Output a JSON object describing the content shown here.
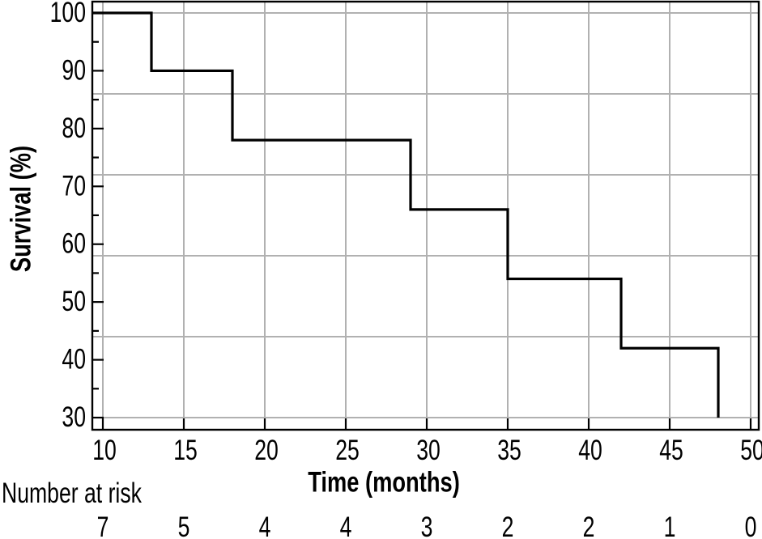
{
  "chart_data": {
    "type": "line",
    "subtype": "kaplan-meier-step-survival",
    "title": "",
    "xlabel": "Time (months)",
    "ylabel": "Survival (%)",
    "xlim": [
      10,
      50
    ],
    "ylim": [
      30,
      100
    ],
    "x_ticks": [
      10,
      15,
      20,
      25,
      30,
      35,
      40,
      45,
      50
    ],
    "y_ticks": [
      30,
      40,
      50,
      60,
      70,
      80,
      90,
      100
    ],
    "y_minor_ticks": [
      35,
      45,
      55,
      65,
      75,
      85,
      95
    ],
    "grid": {
      "shown": true,
      "vertical_at_months": [
        10,
        15,
        20,
        25,
        30,
        35,
        40,
        45,
        50
      ],
      "horizontal_at_percent": [
        100,
        86,
        72,
        58,
        44,
        30
      ],
      "color": "#b1b1b1"
    },
    "series": [
      {
        "name": "survival",
        "color": "#000000",
        "step_points": [
          [
            10,
            100
          ],
          [
            13,
            90
          ],
          [
            18,
            78
          ],
          [
            29,
            66
          ],
          [
            35,
            54
          ],
          [
            42,
            42
          ],
          [
            48,
            30
          ]
        ]
      }
    ],
    "legend_position": "none",
    "colors": {
      "curve": "#000000",
      "axis": "#000000",
      "grid": "#b1b1b1"
    }
  },
  "risk_table": {
    "label": "Number at risk",
    "times": [
      10,
      15,
      20,
      25,
      30,
      35,
      40,
      45,
      50
    ],
    "values": [
      7,
      5,
      4,
      4,
      3,
      2,
      2,
      1,
      0
    ]
  }
}
